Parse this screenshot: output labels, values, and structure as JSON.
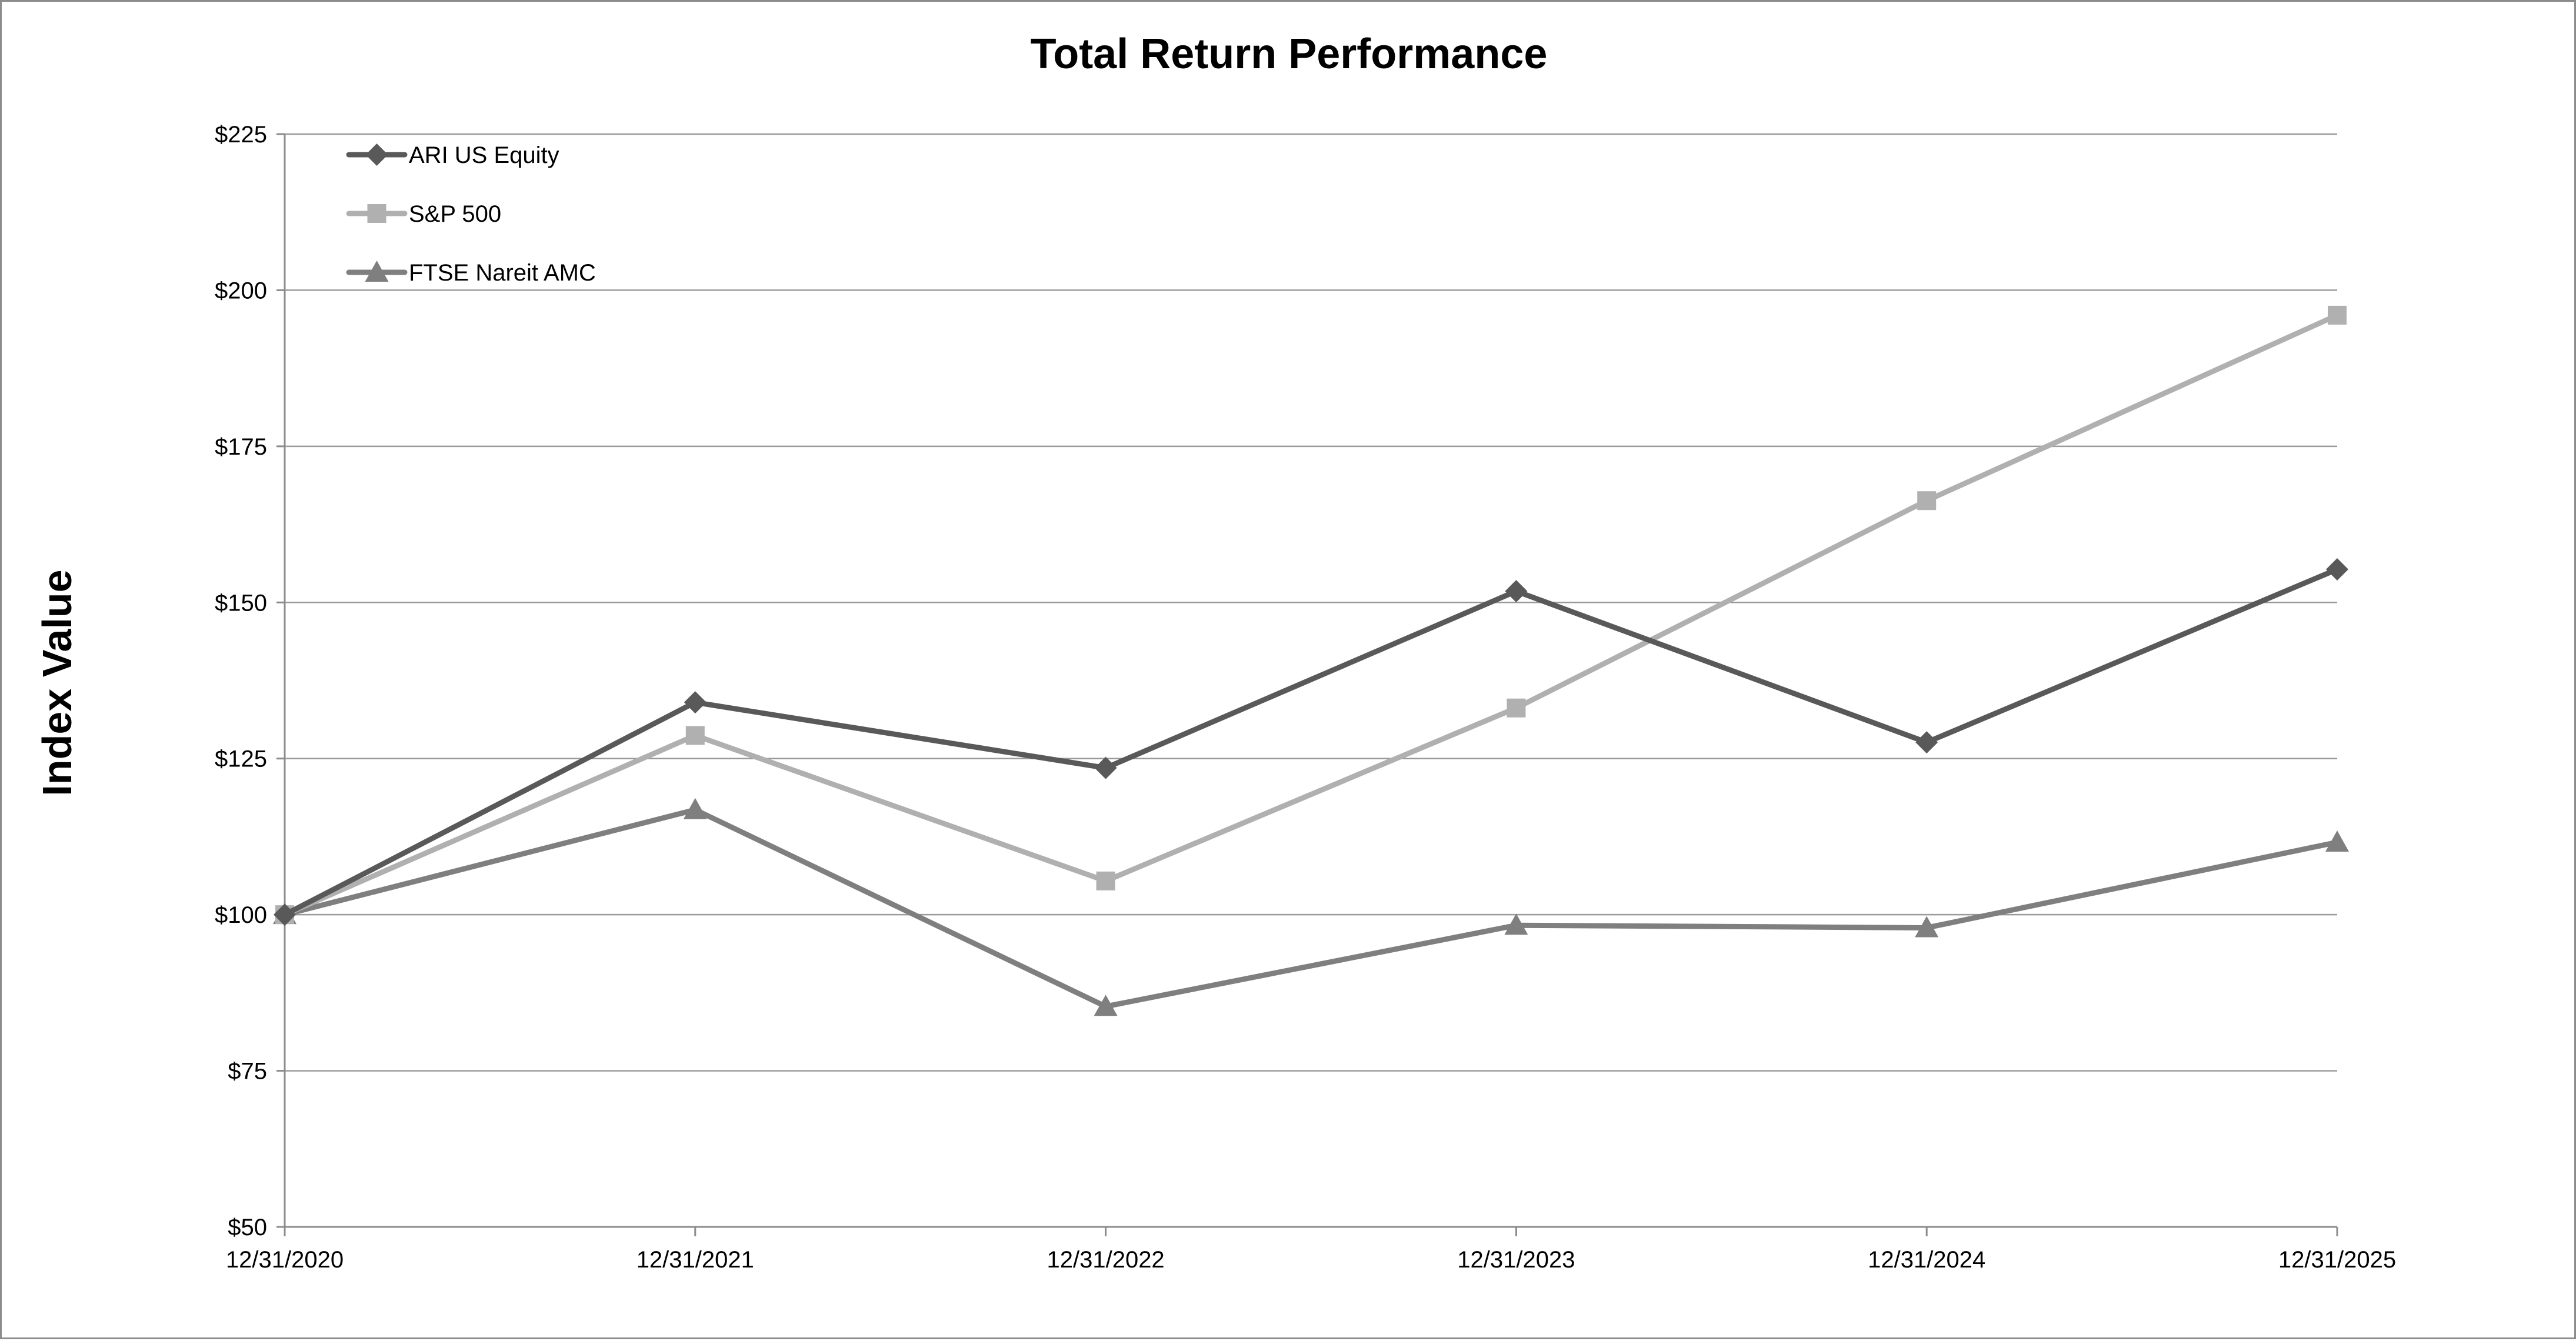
{
  "chart_data": {
    "type": "line",
    "title": "Total Return Performance",
    "xlabel": "",
    "ylabel": "Index Value",
    "categories": [
      "12/31/2020",
      "12/31/2021",
      "12/31/2022",
      "12/31/2023",
      "12/31/2024",
      "12/31/2025"
    ],
    "ylim": [
      50,
      225
    ],
    "yticks": [
      50,
      75,
      100,
      125,
      150,
      175,
      200,
      225
    ],
    "ytick_labels": [
      "$50",
      "$75",
      "$100",
      "$125",
      "$150",
      "$175",
      "$200",
      "$225"
    ],
    "grid": true,
    "legend_position": "top-left",
    "series": [
      {
        "name": "ARI US Equity",
        "marker": "diamond",
        "color": "#595959",
        "values": [
          100,
          134,
          123.5,
          151.8,
          127.6,
          155.3
        ]
      },
      {
        "name": "S&P 500",
        "marker": "square",
        "color": "#b0b0b0",
        "values": [
          100,
          128.7,
          105.4,
          133.1,
          166.3,
          196
        ]
      },
      {
        "name": "FTSE Nareit AMC",
        "marker": "triangle",
        "color": "#7f7f7f",
        "values": [
          100,
          116.8,
          85.3,
          98.3,
          97.9,
          111.6
        ]
      }
    ]
  }
}
